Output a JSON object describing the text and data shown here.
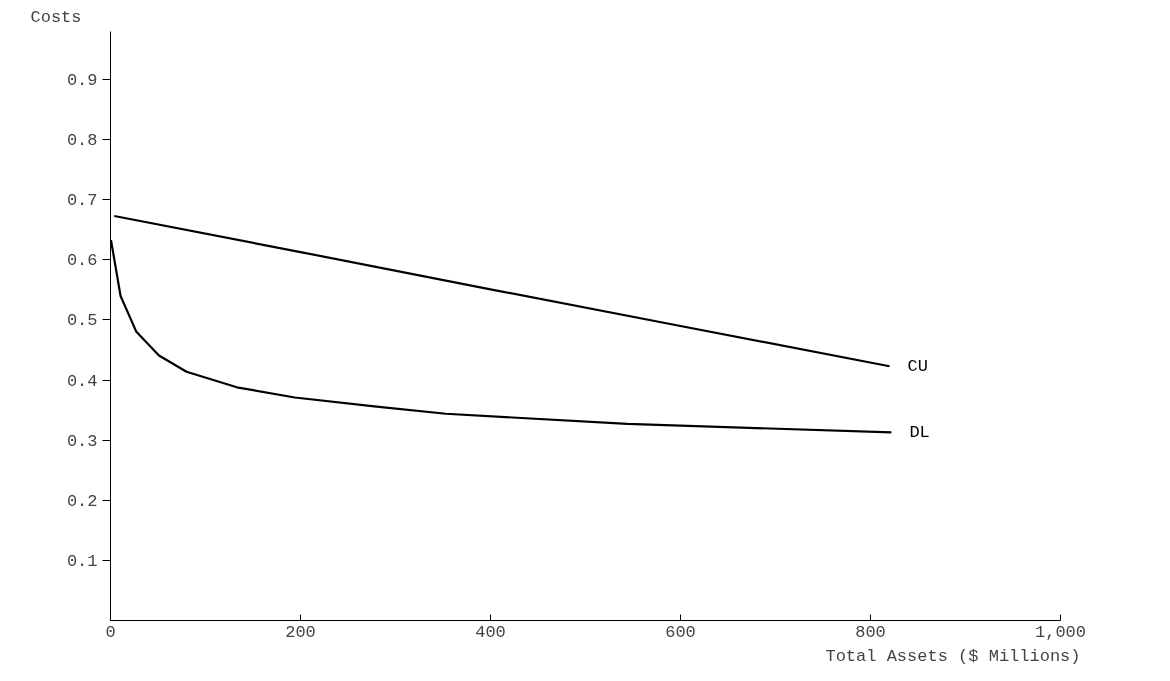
{
  "chart_data": {
    "type": "line",
    "xlabel": "Total Assets ($ Millions)",
    "ylabel": "Costs",
    "xlim": [
      0,
      1000
    ],
    "ylim": [
      0,
      0.98
    ],
    "xticks": [
      0,
      200,
      400,
      600,
      800,
      {
        "value": 1000,
        "label": "1,000"
      }
    ],
    "yticks": [
      0.1,
      0.2,
      0.3,
      0.4,
      0.5,
      0.6,
      0.7,
      0.8,
      0.9
    ],
    "grid": false,
    "marker": "none",
    "line_style": "solid",
    "series": [
      {
        "name": "CU",
        "color": "#000000",
        "x": [
          4,
          200,
          400,
          600,
          820
        ],
        "values": [
          0.673,
          0.613,
          0.551,
          0.49,
          0.423
        ]
      },
      {
        "name": "DL",
        "color": "#000000",
        "x": [
          0.5,
          10.6,
          27,
          51,
          80,
          133,
          194,
          280,
          353,
          544,
          822
        ],
        "values": [
          0.633,
          0.54,
          0.481,
          0.441,
          0.414,
          0.388,
          0.371,
          0.356,
          0.344,
          0.327,
          0.313
        ]
      }
    ]
  }
}
